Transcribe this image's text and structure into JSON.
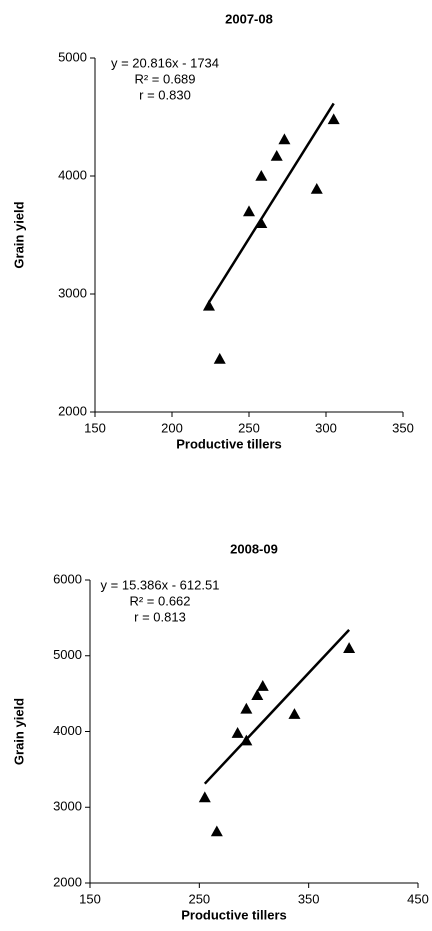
{
  "chart_data": [
    {
      "type": "scatter",
      "title": "2007-08",
      "x_label": "Productive tillers",
      "y_label": "Grain yield",
      "annotations": [
        "y = 20.816x - 1734",
        "R² = 0.689",
        "r = 0.830"
      ],
      "x": [
        224,
        231,
        250,
        258,
        258,
        268,
        273,
        294,
        305
      ],
      "values": [
        2900,
        2450,
        3700,
        3600,
        4000,
        4170,
        4310,
        3890,
        4480
      ],
      "trend_line": {
        "x": [
          224,
          305
        ],
        "y": [
          2929,
          4615
        ]
      },
      "color": "#000000",
      "marker": "triangle",
      "xlim": [
        150,
        350
      ],
      "xticks": [
        150,
        200,
        250,
        300,
        350
      ],
      "ylim": [
        2000,
        5000
      ],
      "yticks": [
        2000,
        3000,
        4000,
        5000
      ]
    },
    {
      "type": "scatter",
      "title": "2008-09",
      "x_label": "Productive tillers",
      "y_label": "Grain yield",
      "annotations": [
        "y = 15.386x - 612.51",
        "R² = 0.662",
        "r = 0.813"
      ],
      "x": [
        255,
        266,
        285,
        293,
        293,
        303,
        308,
        337,
        387
      ],
      "values": [
        3130,
        2680,
        3980,
        4300,
        3880,
        4480,
        4600,
        4230,
        5100
      ],
      "trend_line": {
        "x": [
          255,
          387
        ],
        "y": [
          3311,
          5342
        ]
      },
      "color": "#000000",
      "marker": "triangle",
      "xlim": [
        150,
        450
      ],
      "xticks": [
        150,
        250,
        350,
        450
      ],
      "ylim": [
        2000,
        6000
      ],
      "yticks": [
        2000,
        3000,
        4000,
        5000,
        6000
      ]
    }
  ]
}
